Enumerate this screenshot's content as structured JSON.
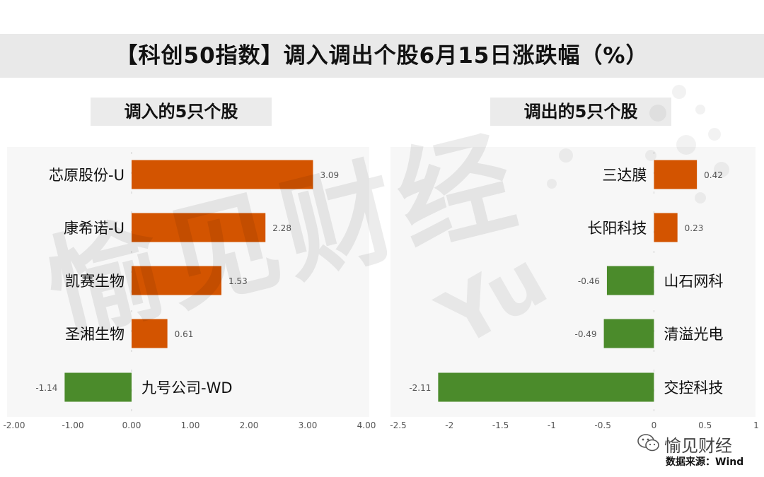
{
  "title": "【科创50指数】调入调出个股6月15日涨跌幅（%）",
  "watermark": "愉见财经",
  "brand": {
    "name": "愉见财经",
    "source": "数据来源：Wind"
  },
  "colors": {
    "positive": "#d35400",
    "negative": "#4b8b2b"
  },
  "chart_data": [
    {
      "type": "bar",
      "orientation": "horizontal",
      "title": "调入的5只个股",
      "categories": [
        "芯原股份-U",
        "康希诺-U",
        "凯赛生物",
        "圣湘生物",
        "九号公司-WD"
      ],
      "values": [
        3.09,
        2.28,
        1.53,
        0.61,
        -1.14
      ],
      "value_labels": [
        "3.09",
        "2.28",
        "1.53",
        "0.61",
        "-1.14"
      ],
      "xlim": [
        -2,
        4
      ],
      "xticks": [
        -2,
        -1,
        0,
        1,
        2,
        3,
        4
      ],
      "xtick_labels": [
        "-2.00",
        "-1.00",
        "0.00",
        "1.00",
        "2.00",
        "3.00",
        "4.00"
      ]
    },
    {
      "type": "bar",
      "orientation": "horizontal",
      "title": "调出的5只个股",
      "categories": [
        "三达膜",
        "长阳科技",
        "山石网科",
        "清溢光电",
        "交控科技"
      ],
      "values": [
        0.42,
        0.23,
        -0.46,
        -0.49,
        -2.11
      ],
      "value_labels": [
        "0.42",
        "0.23",
        "-0.46",
        "-0.49",
        "-2.11"
      ],
      "xlim": [
        -2.5,
        1
      ],
      "xticks": [
        -2.5,
        -2,
        -1.5,
        -1,
        -0.5,
        0,
        0.5,
        1
      ],
      "xtick_labels": [
        "-2.5",
        "-2",
        "-1.5",
        "-1",
        "-0.5",
        "0",
        "0.5",
        "1"
      ]
    }
  ]
}
